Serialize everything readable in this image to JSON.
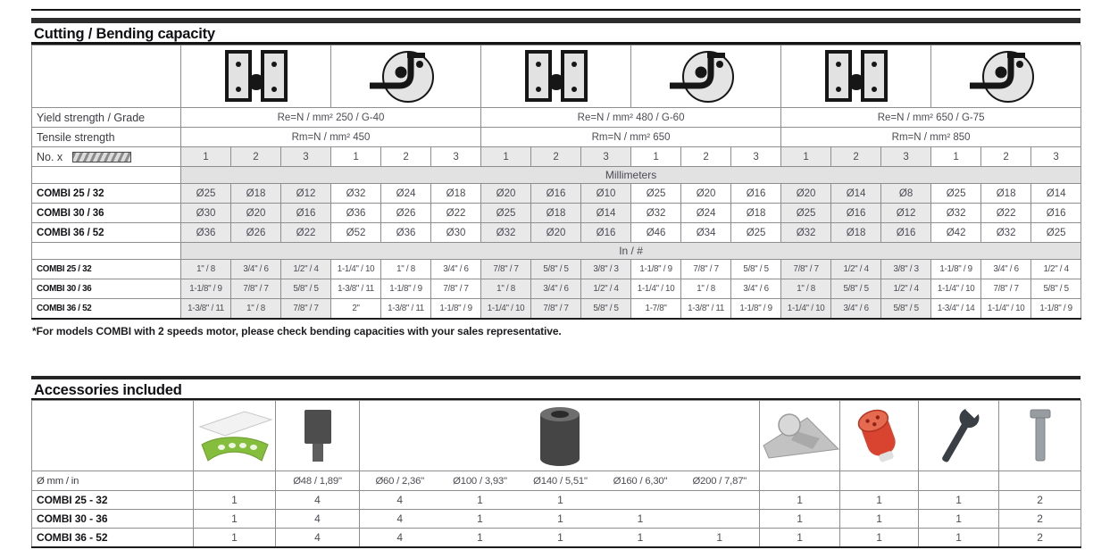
{
  "page": {
    "footnote": "*For models COMBI with 2 speeds motor, please check bending capacities with your sales representative."
  },
  "capacity": {
    "title": "Cutting / Bending capacity",
    "yield_label": "Yield strength / Grade",
    "tensile_label": "Tensile strength",
    "no_label": "No. x",
    "mm_band": "Millimeters",
    "in_band": "In / #",
    "icons": [
      "cutting-dies-icon",
      "bending-roller-icon"
    ],
    "groups": [
      {
        "yield": "Re=N / mm² 250 / G-40",
        "tensile": "Rm=N / mm² 450"
      },
      {
        "yield": "Re=N / mm² 480 / G-60",
        "tensile": "Rm=N / mm² 650"
      },
      {
        "yield": "Re=N / mm² 650 / G-75",
        "tensile": "Rm=N / mm² 850"
      }
    ],
    "no_values": [
      "1",
      "2",
      "3",
      "1",
      "2",
      "3",
      "1",
      "2",
      "3",
      "1",
      "2",
      "3",
      "1",
      "2",
      "3",
      "1",
      "2",
      "3"
    ],
    "mm_rows": [
      {
        "label": "COMBI 25 / 32",
        "values": [
          "Ø25",
          "Ø18",
          "Ø12",
          "Ø32",
          "Ø24",
          "Ø18",
          "Ø20",
          "Ø16",
          "Ø10",
          "Ø25",
          "Ø20",
          "Ø16",
          "Ø20",
          "Ø14",
          "Ø8",
          "Ø25",
          "Ø18",
          "Ø14"
        ]
      },
      {
        "label": "COMBI 30 / 36",
        "values": [
          "Ø30",
          "Ø20",
          "Ø16",
          "Ø36",
          "Ø26",
          "Ø22",
          "Ø25",
          "Ø18",
          "Ø14",
          "Ø32",
          "Ø24",
          "Ø18",
          "Ø25",
          "Ø16",
          "Ø12",
          "Ø32",
          "Ø22",
          "Ø16"
        ]
      },
      {
        "label": "COMBI 36 / 52",
        "values": [
          "Ø36",
          "Ø26",
          "Ø22",
          "Ø52",
          "Ø36",
          "Ø30",
          "Ø32",
          "Ø20",
          "Ø16",
          "Ø46",
          "Ø34",
          "Ø25",
          "Ø32",
          "Ø18",
          "Ø16",
          "Ø42",
          "Ø32",
          "Ø25"
        ]
      }
    ],
    "in_rows": [
      {
        "label": "COMBI 25 / 32",
        "values": [
          "1\" / 8",
          "3/4\" / 6",
          "1/2\" / 4",
          "1-1/4\" / 10",
          "1\" / 8",
          "3/4\" / 6",
          "7/8\" / 7",
          "5/8\" / 5",
          "3/8\" / 3",
          "1-1/8\" / 9",
          "7/8\" / 7",
          "5/8\" / 5",
          "7/8\" / 7",
          "1/2\" / 4",
          "3/8\" / 3",
          "1-1/8\" / 9",
          "3/4\" / 6",
          "1/2\" / 4"
        ]
      },
      {
        "label": "COMBI 30 / 36",
        "values": [
          "1-1/8\" / 9",
          "7/8\" / 7",
          "5/8\" / 5",
          "1-3/8\" / 11",
          "1-1/8\" / 9",
          "7/8\" / 7",
          "1\" / 8",
          "3/4\" / 6",
          "1/2\" / 4",
          "1-1/4\" / 10",
          "1\" / 8",
          "3/4\" / 6",
          "1\" / 8",
          "5/8\" / 5",
          "1/2\" / 4",
          "1-1/4\" / 10",
          "7/8\" / 7",
          "5/8\" / 5"
        ]
      },
      {
        "label": "COMBI 36 / 52",
        "values": [
          "1-3/8\" / 11",
          "1\" / 8",
          "7/8\" / 7",
          "2\"",
          "1-3/8\" / 11",
          "1-1/8\" / 9",
          "1-1/4\" / 10",
          "7/8\" / 7",
          "5/8\" / 5",
          "1-7/8\"",
          "1-3/8\" / 11",
          "1-1/8\" / 9",
          "1-1/4\" / 10",
          "3/4\" / 6",
          "5/8\" / 5",
          "1-3/4\" / 14",
          "1-1/4\" / 10",
          "1-1/8\" / 9"
        ]
      }
    ]
  },
  "accessories": {
    "title": "Accessories included",
    "dia_label": "Ø mm / in",
    "dia_values": [
      "Ø48 / 1,89\"",
      "Ø60 / 2,36\"",
      "Ø100 / 3,93\"",
      "Ø140 / 5,51\"",
      "Ø160 / 6,30\"",
      "Ø200 / 7,87\""
    ],
    "icons": [
      "blade-guard-icon",
      "mandrel-icon",
      "bending-roller-icon",
      "bending-square-icon",
      "power-plug-icon",
      "wrench-icon",
      "bolt-pin-icon"
    ],
    "rows": [
      {
        "label": "COMBI 25 - 32",
        "values": [
          "1",
          "4",
          "4",
          "1",
          "1",
          "",
          "",
          "1",
          "1",
          "1",
          "2"
        ]
      },
      {
        "label": "COMBI 30 - 36",
        "values": [
          "1",
          "4",
          "4",
          "1",
          "1",
          "1",
          "",
          "1",
          "1",
          "1",
          "2"
        ]
      },
      {
        "label": "COMBI 36 - 52",
        "values": [
          "1",
          "4",
          "4",
          "1",
          "1",
          "1",
          "1",
          "1",
          "1",
          "1",
          "2"
        ]
      }
    ]
  }
}
